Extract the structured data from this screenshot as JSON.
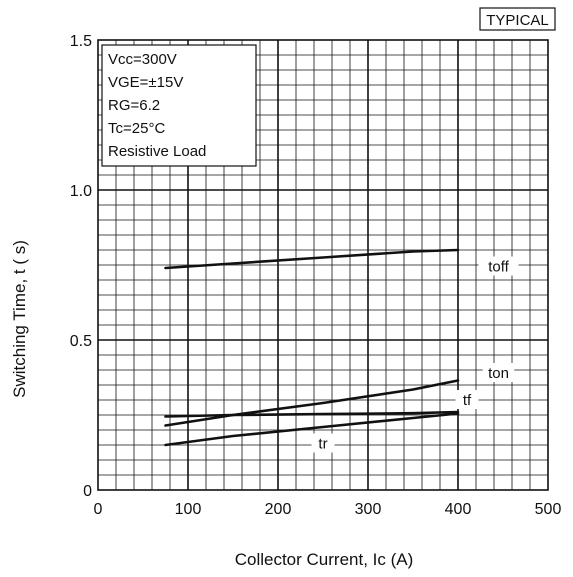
{
  "chart_data": {
    "type": "line",
    "badge": "TYPICAL",
    "xlabel": "Collector Current, Ic (A)",
    "ylabel": "Switching Time, t (  s)",
    "xlim": [
      0,
      500
    ],
    "ylim": [
      0,
      1.5
    ],
    "x_ticks": [
      "0",
      "100",
      "200",
      "300",
      "400",
      "500"
    ],
    "y_ticks": [
      "0",
      "0.5",
      "1.0",
      "1.5"
    ],
    "grid": true,
    "conditions": [
      "Vcc=300V",
      "VGE=±15V",
      "RG=6.2",
      "Tc=25°C",
      "Resistive Load"
    ],
    "series": [
      {
        "name": "toff",
        "x": [
          75,
          150,
          250,
          350,
          400
        ],
        "y": [
          0.74,
          0.755,
          0.775,
          0.795,
          0.8
        ]
      },
      {
        "name": "ton",
        "x": [
          75,
          150,
          250,
          350,
          400
        ],
        "y": [
          0.215,
          0.25,
          0.29,
          0.335,
          0.365
        ]
      },
      {
        "name": "tf",
        "x": [
          75,
          150,
          250,
          350,
          400
        ],
        "y": [
          0.245,
          0.25,
          0.253,
          0.256,
          0.26
        ]
      },
      {
        "name": "tr",
        "x": [
          75,
          150,
          250,
          350,
          400
        ],
        "y": [
          0.15,
          0.18,
          0.21,
          0.24,
          0.255
        ]
      }
    ]
  }
}
